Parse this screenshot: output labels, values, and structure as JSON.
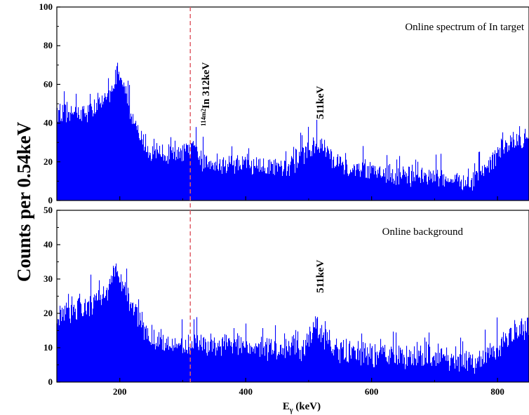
{
  "chart_data": {
    "type": "bar",
    "ylabel": "Counts per 0.54keV",
    "xlabel": "E",
    "xlabel_sub": "γ",
    "xlabel_unit": " (keV)",
    "xlim": [
      100,
      850
    ],
    "xticks": [
      200,
      400,
      600,
      800
    ],
    "marker_line": {
      "x": 312,
      "color": "#e0606a"
    },
    "bar_color": "#0000ff",
    "bin_width": 0.54,
    "panels": [
      {
        "id": "top",
        "title": "Online spectrum of In target",
        "ylim": [
          0,
          100
        ],
        "yticks": [
          0,
          20,
          40,
          60,
          80,
          100
        ],
        "profile": [
          [
            100,
            44
          ],
          [
            150,
            46
          ],
          [
            180,
            52
          ],
          [
            195,
            67
          ],
          [
            205,
            62
          ],
          [
            215,
            48
          ],
          [
            230,
            33
          ],
          [
            250,
            25
          ],
          [
            290,
            23
          ],
          [
            305,
            25
          ],
          [
            315,
            27
          ],
          [
            330,
            20
          ],
          [
            400,
            18
          ],
          [
            470,
            18
          ],
          [
            495,
            24
          ],
          [
            510,
            30
          ],
          [
            525,
            27
          ],
          [
            540,
            20
          ],
          [
            560,
            17
          ],
          [
            620,
            14
          ],
          [
            700,
            11
          ],
          [
            760,
            10
          ],
          [
            790,
            20
          ],
          [
            820,
            30
          ],
          [
            850,
            31
          ]
        ],
        "noise": 6,
        "peaks": [
          {
            "energy": 511,
            "label": "511keV"
          },
          {
            "energy": 312,
            "label_sup": "114m2",
            "label": "In 312keV"
          }
        ]
      },
      {
        "id": "bottom",
        "title": "Online background",
        "ylim": [
          0,
          50
        ],
        "yticks": [
          0,
          10,
          20,
          30,
          40,
          50
        ],
        "profile": [
          [
            100,
            19
          ],
          [
            150,
            22
          ],
          [
            180,
            26
          ],
          [
            195,
            33
          ],
          [
            205,
            29
          ],
          [
            220,
            21
          ],
          [
            245,
            14
          ],
          [
            280,
            11
          ],
          [
            400,
            10
          ],
          [
            490,
            9
          ],
          [
            510,
            17
          ],
          [
            525,
            13
          ],
          [
            545,
            9
          ],
          [
            600,
            8
          ],
          [
            700,
            7
          ],
          [
            770,
            6
          ],
          [
            800,
            10
          ],
          [
            830,
            15
          ],
          [
            850,
            16
          ]
        ],
        "noise": 4,
        "peaks": [
          {
            "energy": 511,
            "label": "511keV"
          }
        ]
      }
    ]
  }
}
